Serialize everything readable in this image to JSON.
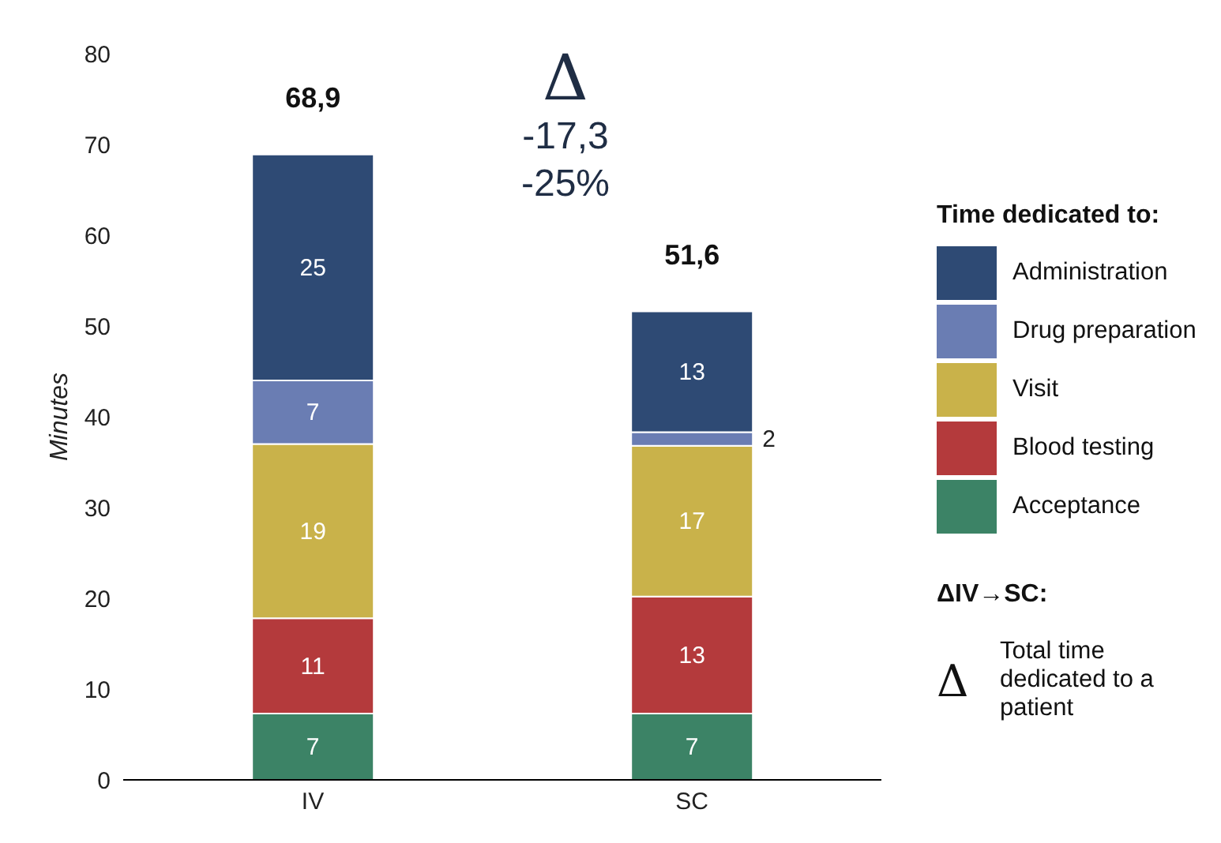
{
  "chart_data": {
    "type": "bar",
    "stacked": true,
    "ylabel": "Minutes",
    "legend_title": "Time dedicated to:",
    "categories": [
      "IV",
      "SC"
    ],
    "series": [
      {
        "name": "Acceptance",
        "color": "#3c8366",
        "values": [
          7.3,
          7.3
        ],
        "value_labels": [
          "7",
          "7"
        ]
      },
      {
        "name": "Blood testing",
        "color": "#b43a3c",
        "values": [
          10.5,
          12.9
        ],
        "value_labels": [
          "11",
          "13"
        ]
      },
      {
        "name": "Visit",
        "color": "#c9b24a",
        "values": [
          19.2,
          16.6
        ],
        "value_labels": [
          "19",
          "17"
        ]
      },
      {
        "name": "Drug preparation",
        "color": "#6a7db3",
        "values": [
          7.0,
          1.5
        ],
        "value_labels": [
          "7",
          "2"
        ]
      },
      {
        "name": "Administration",
        "color": "#2e4a74",
        "values": [
          24.9,
          13.3
        ],
        "value_labels": [
          "25",
          "13"
        ]
      }
    ],
    "totals": [
      "68,9",
      "51,6"
    ],
    "ylim": [
      0,
      80
    ],
    "yticks": [
      0,
      10,
      20,
      30,
      40,
      50,
      60,
      70,
      80
    ],
    "grid": false,
    "legend": "right",
    "annotations": [
      "Δ",
      "-17,3",
      "-25%",
      "ΔIV→SC:",
      "Δ",
      "Total time dedicated to a patient"
    ]
  }
}
